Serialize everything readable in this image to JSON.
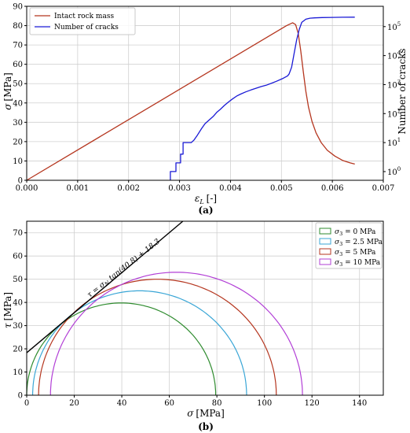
{
  "chart_data": [
    {
      "type": "line",
      "panel_label": "(a)",
      "xlabel_parts": {
        "sym": "ε",
        "sub": "L",
        "unit": "[-]"
      },
      "ylabel_parts": {
        "sym": "σ",
        "unit": "[MPa]"
      },
      "y2label": "Number of cracks",
      "xlim": [
        0,
        0.007
      ],
      "ylim": [
        0,
        90
      ],
      "y2lim_log10": [
        -0.3,
        5.7
      ],
      "y2scale": "log",
      "grid": true,
      "legend_position": "top-left",
      "x_ticks": [
        "0.000",
        "0.001",
        "0.002",
        "0.003",
        "0.004",
        "0.005",
        "0.006",
        "0.007"
      ],
      "y_ticks": [
        "0",
        "10",
        "20",
        "30",
        "40",
        "50",
        "60",
        "70",
        "80",
        "90"
      ],
      "y2_ticks": [
        {
          "base": "10",
          "exp": "0",
          "value": 1
        },
        {
          "base": "10",
          "exp": "1",
          "value": 10
        },
        {
          "base": "10",
          "exp": "2",
          "value": 100
        },
        {
          "base": "10",
          "exp": "3",
          "value": 1000
        },
        {
          "base": "10",
          "exp": "4",
          "value": 10000
        },
        {
          "base": "10",
          "exp": "5",
          "value": 100000
        }
      ],
      "series": [
        {
          "name": "Intact rock mass",
          "axis": "left",
          "color": "#b5361f",
          "x": [
            0,
            0.0051,
            0.00522,
            0.00528,
            0.00533,
            0.00538,
            0.00543,
            0.00548,
            0.00553,
            0.0056,
            0.00568,
            0.00578,
            0.0059,
            0.00605,
            0.0062,
            0.00635,
            0.00644
          ],
          "y": [
            0,
            80,
            81.5,
            80.5,
            76,
            67,
            56,
            46,
            38,
            30.5,
            24.5,
            19.5,
            15.5,
            12.5,
            10.3,
            9,
            8.4
          ]
        },
        {
          "name": "Number of cracks",
          "axis": "right",
          "color": "#1a1ad6",
          "x": [
            0.00282,
            0.00282,
            0.00293,
            0.00293,
            0.00302,
            0.00302,
            0.00307,
            0.00307,
            0.00316,
            0.00323,
            0.00328,
            0.00335,
            0.00343,
            0.0035,
            0.00358,
            0.00366,
            0.00373,
            0.0038,
            0.00388,
            0.00396,
            0.00404,
            0.00412,
            0.0042,
            0.0043,
            0.0044,
            0.0045,
            0.0046,
            0.0047,
            0.0048,
            0.0049,
            0.00502,
            0.00512,
            0.00515,
            0.0052,
            0.00525,
            0.0053,
            0.00535,
            0.0054,
            0.00548,
            0.00556,
            0.00565,
            0.0058,
            0.006,
            0.0062,
            0.00644
          ],
          "y": [
            0.5,
            1,
            1,
            2,
            2,
            4,
            4,
            10,
            10,
            10,
            12,
            18,
            30,
            45,
            60,
            80,
            110,
            140,
            190,
            250,
            320,
            400,
            470,
            560,
            650,
            750,
            850,
            950,
            1100,
            1300,
            1600,
            2000,
            2300,
            4000,
            12000,
            35000,
            80000,
            140000,
            180000,
            195000,
            200000,
            205000,
            208000,
            210000,
            212000
          ]
        }
      ]
    },
    {
      "type": "line",
      "panel_label": "(b)",
      "xlabel_parts": {
        "sym": "σ",
        "unit": "[MPa]"
      },
      "ylabel_parts": {
        "sym": "τ",
        "unit": "[MPa]"
      },
      "xlim": [
        0,
        150
      ],
      "ylim": [
        0,
        75
      ],
      "grid": true,
      "legend_position": "top-right",
      "x_ticks": [
        "0",
        "20",
        "40",
        "60",
        "80",
        "100",
        "120",
        "140"
      ],
      "y_ticks": [
        "0",
        "10",
        "20",
        "30",
        "40",
        "50",
        "60",
        "70"
      ],
      "envelope": {
        "label_parts": {
          "lhs": "τ = σ",
          "sub": "N",
          "rhs": " tan(40.8) + 18.3"
        },
        "friction_angle_deg": 40.8,
        "cohesion": 18.3,
        "color": "#000000"
      },
      "series": [
        {
          "name_parts": {
            "sym": "σ",
            "sub": "3",
            "rest": " = 0 MPa"
          },
          "sigma3": 0,
          "sigma1": 79.5,
          "color": "#2e8b2e"
        },
        {
          "name_parts": {
            "sym": "σ",
            "sub": "3",
            "rest": " = 2.5 MPa"
          },
          "sigma3": 2.5,
          "sigma1": 92.5,
          "color": "#3aa6d6"
        },
        {
          "name_parts": {
            "sym": "σ",
            "sub": "3",
            "rest": " = 5 MPa"
          },
          "sigma3": 5,
          "sigma1": 105,
          "color": "#b5361f"
        },
        {
          "name_parts": {
            "sym": "σ",
            "sub": "3",
            "rest": " = 10 MPa"
          },
          "sigma3": 10,
          "sigma1": 116,
          "color": "#b23fd6"
        }
      ]
    }
  ]
}
